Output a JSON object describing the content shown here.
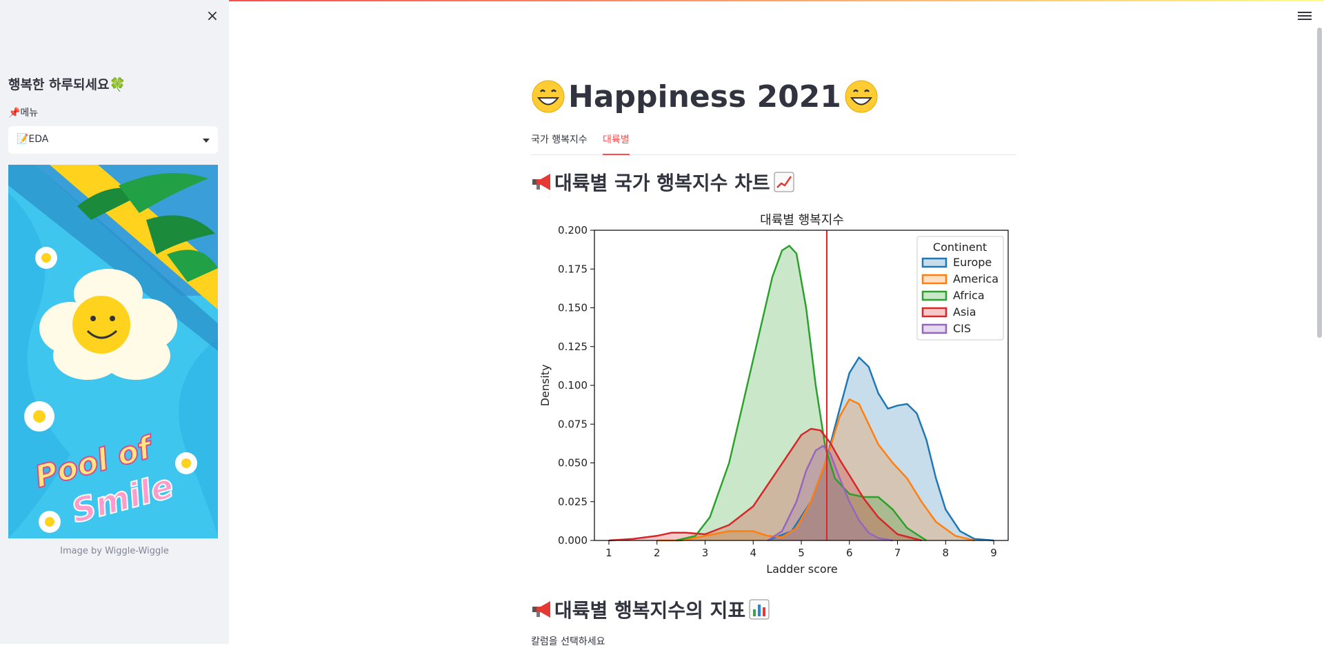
{
  "sidebar": {
    "close_icon": "×",
    "title": "행복한 하루되세요🍀",
    "menu_label": "📌메뉴",
    "select_value": "📝EDA",
    "poster_text_1": "Pool of",
    "poster_text_2": "Smile",
    "image_caption": "Image by Wiggle-Wiggle"
  },
  "main": {
    "title": "Happiness 2021",
    "tabs": [
      {
        "label": "국가 행복지수"
      },
      {
        "label": "대륙별"
      }
    ],
    "active_tab": 1,
    "section1_title": "대륙별 국가 행복지수 차트",
    "section2_title": "대륙별 행복지수의 지표",
    "column_select_label": "칼럼을 선택하세요"
  },
  "chart_data": {
    "type": "area",
    "title": "대륙별 행복지수",
    "xlabel": "Ladder score",
    "ylabel": "Density",
    "xlim": [
      0.7,
      9.3
    ],
    "ylim": [
      0,
      0.2
    ],
    "xticks": [
      "1",
      "2",
      "3",
      "4",
      "5",
      "6",
      "7",
      "8",
      "9"
    ],
    "yticks": [
      "0.000",
      "0.025",
      "0.050",
      "0.075",
      "0.100",
      "0.125",
      "0.150",
      "0.175",
      "0.200"
    ],
    "legend_title": "Continent",
    "legend_position": "top-right",
    "vline_x": 5.53,
    "vline_color": "#d62728",
    "series": [
      {
        "name": "Europe",
        "color": "#1f77b4",
        "x": [
          4.3,
          4.8,
          5.2,
          5.5,
          5.8,
          6.0,
          6.2,
          6.4,
          6.6,
          6.8,
          7.0,
          7.2,
          7.4,
          7.6,
          7.8,
          8.0,
          8.3,
          8.6,
          9.0
        ],
        "y": [
          0.0,
          0.006,
          0.025,
          0.05,
          0.085,
          0.108,
          0.118,
          0.112,
          0.095,
          0.085,
          0.087,
          0.088,
          0.082,
          0.065,
          0.04,
          0.02,
          0.006,
          0.001,
          0.0
        ]
      },
      {
        "name": "America",
        "color": "#ff7f0e",
        "x": [
          2.0,
          2.5,
          3.0,
          3.5,
          4.0,
          4.3,
          4.6,
          4.9,
          5.2,
          5.5,
          5.8,
          6.0,
          6.2,
          6.4,
          6.6,
          6.9,
          7.2,
          7.5,
          7.8,
          8.2,
          8.6
        ],
        "y": [
          0.0,
          0.0,
          0.003,
          0.006,
          0.006,
          0.003,
          0.002,
          0.008,
          0.025,
          0.05,
          0.08,
          0.091,
          0.088,
          0.075,
          0.062,
          0.05,
          0.04,
          0.025,
          0.012,
          0.003,
          0.0
        ]
      },
      {
        "name": "Africa",
        "color": "#2ca02c",
        "x": [
          2.4,
          2.8,
          3.1,
          3.5,
          3.8,
          4.1,
          4.4,
          4.6,
          4.75,
          4.9,
          5.1,
          5.3,
          5.5,
          5.7,
          6.0,
          6.3,
          6.6,
          6.9,
          7.2,
          7.6
        ],
        "y": [
          0.0,
          0.003,
          0.015,
          0.05,
          0.09,
          0.13,
          0.17,
          0.187,
          0.19,
          0.185,
          0.15,
          0.1,
          0.06,
          0.04,
          0.03,
          0.028,
          0.028,
          0.02,
          0.008,
          0.0
        ]
      },
      {
        "name": "Asia",
        "color": "#d62728",
        "x": [
          1.0,
          1.5,
          2.0,
          2.3,
          2.6,
          3.0,
          3.5,
          4.0,
          4.5,
          5.0,
          5.2,
          5.4,
          5.6,
          5.8,
          6.0,
          6.3,
          6.6,
          7.0,
          7.5
        ],
        "y": [
          0.0,
          0.001,
          0.003,
          0.005,
          0.005,
          0.004,
          0.01,
          0.022,
          0.045,
          0.068,
          0.072,
          0.071,
          0.063,
          0.052,
          0.042,
          0.027,
          0.015,
          0.004,
          0.0
        ]
      },
      {
        "name": "CIS",
        "color": "#9467bd",
        "x": [
          4.3,
          4.6,
          4.9,
          5.1,
          5.3,
          5.45,
          5.6,
          5.8,
          6.0,
          6.2,
          6.4,
          6.6,
          6.9
        ],
        "y": [
          0.0,
          0.006,
          0.025,
          0.045,
          0.058,
          0.061,
          0.056,
          0.04,
          0.025,
          0.013,
          0.005,
          0.0015,
          0.0
        ]
      }
    ]
  },
  "colors": {
    "accent": "#ff4b4b",
    "sidebar_bg": "#f0f2f6",
    "text": "#31333f"
  }
}
